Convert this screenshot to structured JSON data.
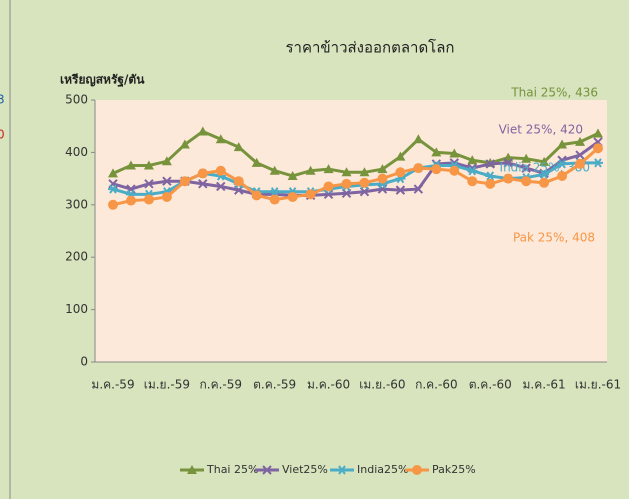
{
  "chart_data": {
    "type": "line",
    "title": "ราคาข้าวส่งออกตลาดโลก",
    "y_label": "เหรียญสหรัฐ/ตัน",
    "side_texts": [
      "3",
      "0"
    ],
    "categories": [
      "ม.ค.-59",
      null,
      null,
      "เม.ย.-59",
      null,
      null,
      "ก.ค.-59",
      null,
      null,
      "ต.ค.-59",
      null,
      null,
      "ม.ค.-60",
      null,
      null,
      "เม.ย.-60",
      null,
      null,
      "ก.ค.-60",
      null,
      null,
      "ต.ค.-60",
      null,
      null,
      "ม.ค.-61",
      null,
      null,
      "เม.ย.-61"
    ],
    "ylim": [
      0,
      500
    ],
    "yticks": [
      0,
      100,
      200,
      300,
      400,
      500
    ],
    "legend": "bottom",
    "series": [
      {
        "name": "Thai 25%",
        "color": "#77933c",
        "marker": "triangle",
        "values": [
          360,
          375,
          375,
          383,
          415,
          440,
          425,
          410,
          380,
          365,
          355,
          365,
          368,
          362,
          362,
          368,
          392,
          425,
          400,
          398,
          385,
          380,
          390,
          388,
          382,
          415,
          420,
          436
        ],
        "value_labels": [
          null,
          null,
          null,
          null,
          null,
          null,
          null,
          null,
          null,
          null,
          null,
          null,
          null,
          null,
          null,
          null,
          null,
          null,
          null,
          null,
          null,
          null,
          null,
          null,
          null,
          null,
          null,
          "Thai 25%, 436"
        ]
      },
      {
        "name": "Viet25%",
        "color": "#7f64a2",
        "marker": "x",
        "values": [
          340,
          330,
          340,
          345,
          345,
          340,
          335,
          328,
          320,
          320,
          318,
          318,
          320,
          322,
          325,
          330,
          328,
          330,
          378,
          380,
          370,
          378,
          380,
          370,
          360,
          385,
          395,
          420
        ],
        "value_labels": [
          null,
          null,
          null,
          null,
          null,
          null,
          null,
          null,
          null,
          null,
          null,
          null,
          null,
          null,
          null,
          null,
          null,
          null,
          null,
          null,
          null,
          null,
          null,
          null,
          null,
          null,
          null,
          "Viet 25%, 420"
        ]
      },
      {
        "name": "India25%",
        "color": "#4bacc6",
        "marker": "star",
        "values": [
          330,
          320,
          320,
          325,
          345,
          360,
          355,
          340,
          325,
          325,
          325,
          325,
          330,
          335,
          338,
          340,
          350,
          370,
          375,
          375,
          365,
          355,
          350,
          352,
          358,
          378,
          380,
          380
        ],
        "value_labels": [
          null,
          null,
          null,
          null,
          null,
          null,
          null,
          null,
          null,
          null,
          null,
          null,
          null,
          null,
          null,
          null,
          null,
          null,
          null,
          null,
          null,
          null,
          null,
          null,
          null,
          null,
          null,
          "India 25%, 380"
        ]
      },
      {
        "name": "Pak25%",
        "color": "#f79646",
        "marker": "circle",
        "values": [
          300,
          308,
          310,
          315,
          345,
          360,
          365,
          345,
          318,
          310,
          315,
          320,
          335,
          340,
          342,
          350,
          362,
          370,
          368,
          365,
          345,
          340,
          350,
          345,
          342,
          355,
          378,
          408
        ],
        "value_labels": [
          null,
          null,
          null,
          null,
          null,
          null,
          null,
          null,
          null,
          null,
          null,
          null,
          null,
          null,
          null,
          null,
          null,
          null,
          null,
          null,
          null,
          null,
          null,
          null,
          null,
          null,
          null,
          "Pak 25%, 408"
        ]
      }
    ]
  }
}
